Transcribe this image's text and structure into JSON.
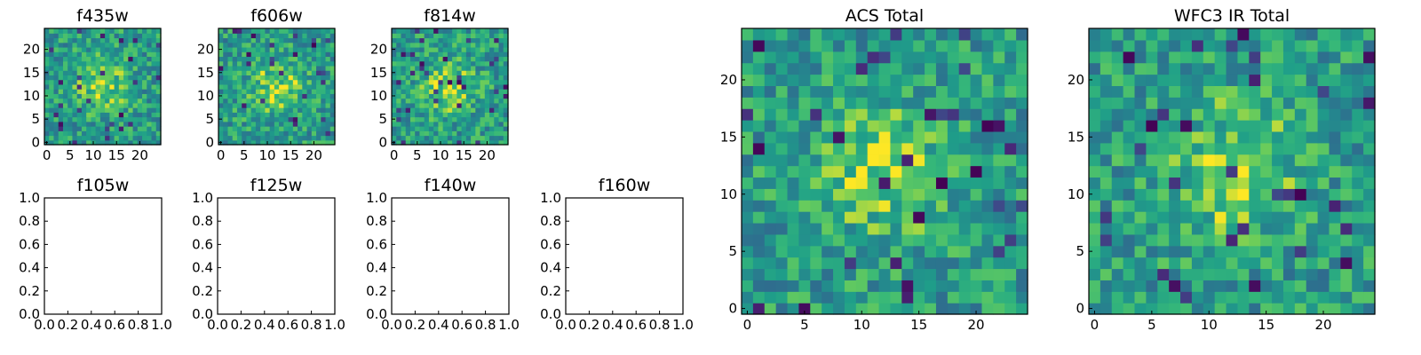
{
  "figure": {
    "background": "#ffffff"
  },
  "chart_data": [
    {
      "type": "heatmap",
      "title": "f435w",
      "grid_size": 25,
      "seed": 435,
      "center": [
        12,
        12
      ],
      "xticks": [
        "0",
        "5",
        "10",
        "15",
        "20"
      ],
      "yticks": [
        "0",
        "5",
        "10",
        "15",
        "20"
      ],
      "xlim": [
        0,
        24
      ],
      "ylim": [
        0,
        24
      ],
      "colormap": "viridis"
    },
    {
      "type": "heatmap",
      "title": "f606w",
      "grid_size": 25,
      "seed": 606,
      "center": [
        12,
        12
      ],
      "xticks": [
        "0",
        "5",
        "10",
        "15",
        "20"
      ],
      "yticks": [
        "0",
        "5",
        "10",
        "15",
        "20"
      ],
      "xlim": [
        0,
        24
      ],
      "ylim": [
        0,
        24
      ],
      "colormap": "viridis"
    },
    {
      "type": "heatmap",
      "title": "f814w",
      "grid_size": 25,
      "seed": 814,
      "center": [
        12,
        12
      ],
      "xticks": [
        "0",
        "5",
        "10",
        "15",
        "20"
      ],
      "yticks": [
        "0",
        "5",
        "10",
        "15",
        "20"
      ],
      "xlim": [
        0,
        24
      ],
      "ylim": [
        0,
        24
      ],
      "colormap": "viridis"
    },
    {
      "type": "empty",
      "title": "f105w",
      "xticks": [
        "0.0",
        "0.2",
        "0.4",
        "0.6",
        "0.8",
        "1.0"
      ],
      "yticks": [
        "0.0",
        "0.2",
        "0.4",
        "0.6",
        "0.8",
        "1.0"
      ],
      "xlim": [
        0,
        1
      ],
      "ylim": [
        0,
        1
      ]
    },
    {
      "type": "empty",
      "title": "f125w",
      "xticks": [
        "0.0",
        "0.2",
        "0.4",
        "0.6",
        "0.8",
        "1.0"
      ],
      "yticks": [
        "0.0",
        "0.2",
        "0.4",
        "0.6",
        "0.8",
        "1.0"
      ],
      "xlim": [
        0,
        1
      ],
      "ylim": [
        0,
        1
      ]
    },
    {
      "type": "empty",
      "title": "f140w",
      "xticks": [
        "0.0",
        "0.2",
        "0.4",
        "0.6",
        "0.8",
        "1.0"
      ],
      "yticks": [
        "0.0",
        "0.2",
        "0.4",
        "0.6",
        "0.8",
        "1.0"
      ],
      "xlim": [
        0,
        1
      ],
      "ylim": [
        0,
        1
      ]
    },
    {
      "type": "empty",
      "title": "f160w",
      "xticks": [
        "0.0",
        "0.2",
        "0.4",
        "0.6",
        "0.8",
        "1.0"
      ],
      "yticks": [
        "0.0",
        "0.2",
        "0.4",
        "0.6",
        "0.8",
        "1.0"
      ],
      "xlim": [
        0,
        1
      ],
      "ylim": [
        0,
        1
      ]
    },
    {
      "type": "heatmap",
      "title": "ACS Total",
      "grid_size": 25,
      "seed": 1001,
      "center": [
        12,
        12
      ],
      "xticks": [
        "0",
        "5",
        "10",
        "15",
        "20"
      ],
      "yticks": [
        "0",
        "5",
        "10",
        "15",
        "20"
      ],
      "xlim": [
        0,
        24
      ],
      "ylim": [
        0,
        24
      ],
      "colormap": "viridis"
    },
    {
      "type": "heatmap",
      "title": "WFC3 IR Total",
      "grid_size": 25,
      "seed": 2002,
      "center": [
        12,
        12
      ],
      "xticks": [
        "0",
        "5",
        "10",
        "15",
        "20"
      ],
      "yticks": [
        "0",
        "5",
        "10",
        "15",
        "20"
      ],
      "xlim": [
        0,
        24
      ],
      "ylim": [
        0,
        24
      ],
      "colormap": "viridis"
    }
  ]
}
